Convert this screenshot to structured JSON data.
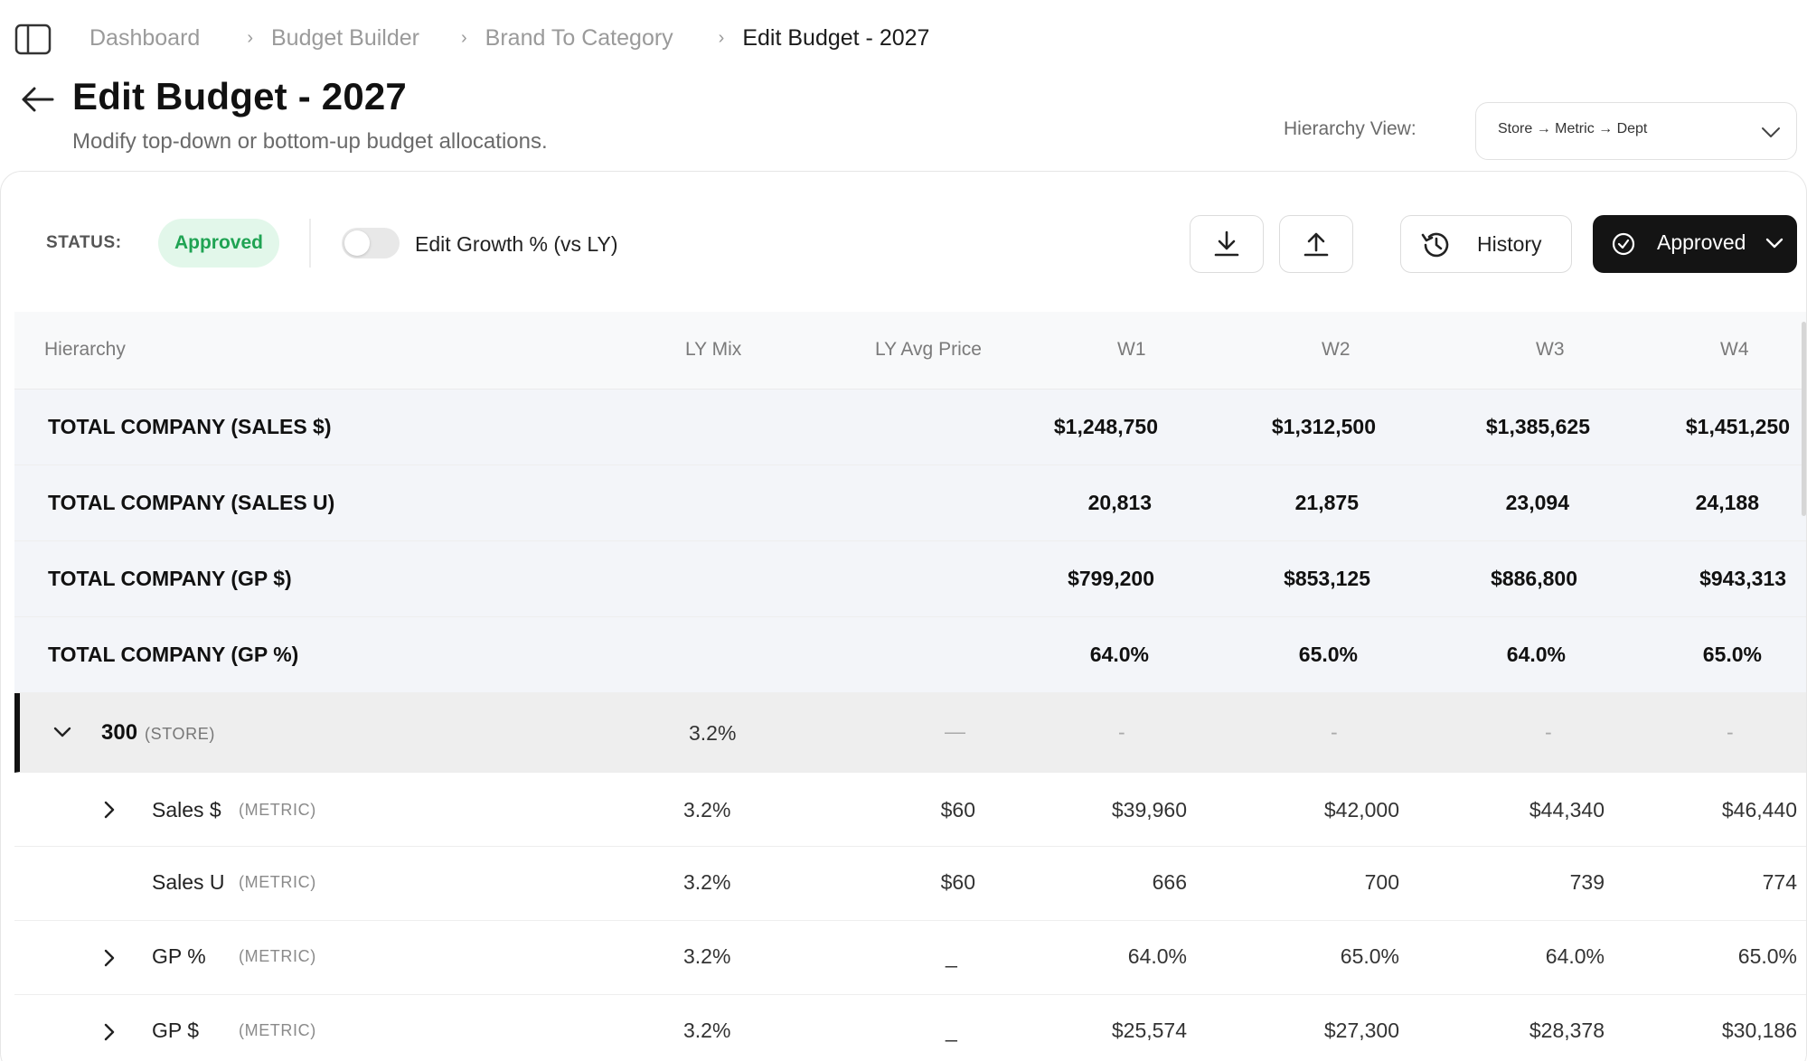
{
  "breadcrumb": [
    "Dashboard",
    "Budget Builder",
    "Brand To Category",
    "Edit Budget - 2027"
  ],
  "page": {
    "title": "Edit Budget - 2027",
    "subtitle": "Modify top-down or bottom-up budget allocations."
  },
  "hierarchy_view": {
    "label": "Hierarchy View:",
    "value": "Store → Metric → Dept"
  },
  "toolbar": {
    "status_label": "STATUS:",
    "status_value": "Approved",
    "toggle_label": "Edit Growth % (vs LY)",
    "toggle_on": false,
    "download_icon": "download-icon",
    "upload_icon": "upload-icon",
    "history_label": "History",
    "approved_label": "Approved"
  },
  "table": {
    "columns": [
      "Hierarchy",
      "LY Mix",
      "LY Avg Price",
      "W1",
      "W2",
      "W3",
      "W4"
    ],
    "totals": [
      {
        "name": "TOTAL COMPANY (SALES $)",
        "w": [
          "$1,248,750",
          "$1,312,500",
          "$1,385,625",
          "$1,451,250"
        ]
      },
      {
        "name": "TOTAL COMPANY (SALES U)",
        "w": [
          "20,813",
          "21,875",
          "23,094",
          "24,188"
        ]
      },
      {
        "name": "TOTAL COMPANY (GP $)",
        "w": [
          "$799,200",
          "$853,125",
          "$886,800",
          "$943,313"
        ]
      },
      {
        "name": "TOTAL COMPANY (GP %)",
        "w": [
          "64.0%",
          "65.0%",
          "64.0%",
          "65.0%"
        ]
      }
    ],
    "store": {
      "name": "300",
      "tag": "(STORE)",
      "ly_mix": "3.2%",
      "ly_avg_price": "—",
      "w": [
        "-",
        "-",
        "-",
        "-"
      ]
    },
    "metrics": [
      {
        "name": "Sales $",
        "tag": "(METRIC)",
        "ly_mix": "3.2%",
        "ly_avg_price": "$60",
        "w": [
          "$39,960",
          "$42,000",
          "$44,340",
          "$46,440"
        ],
        "expandable": true
      },
      {
        "name": "Sales U",
        "tag": "(METRIC)",
        "ly_mix": "3.2%",
        "ly_avg_price": "$60",
        "w": [
          "666",
          "700",
          "739",
          "774"
        ],
        "expandable": false
      },
      {
        "name": "GP %",
        "tag": "(METRIC)",
        "ly_mix": "3.2%",
        "ly_avg_price": "_",
        "w": [
          "64.0%",
          "65.0%",
          "64.0%",
          "65.0%"
        ],
        "expandable": true
      },
      {
        "name": "GP $",
        "tag": "(METRIC)",
        "ly_mix": "3.2%",
        "ly_avg_price": "_",
        "w": [
          "$25,574",
          "$27,300",
          "$28,378",
          "$30,186"
        ],
        "expandable": true
      }
    ]
  }
}
